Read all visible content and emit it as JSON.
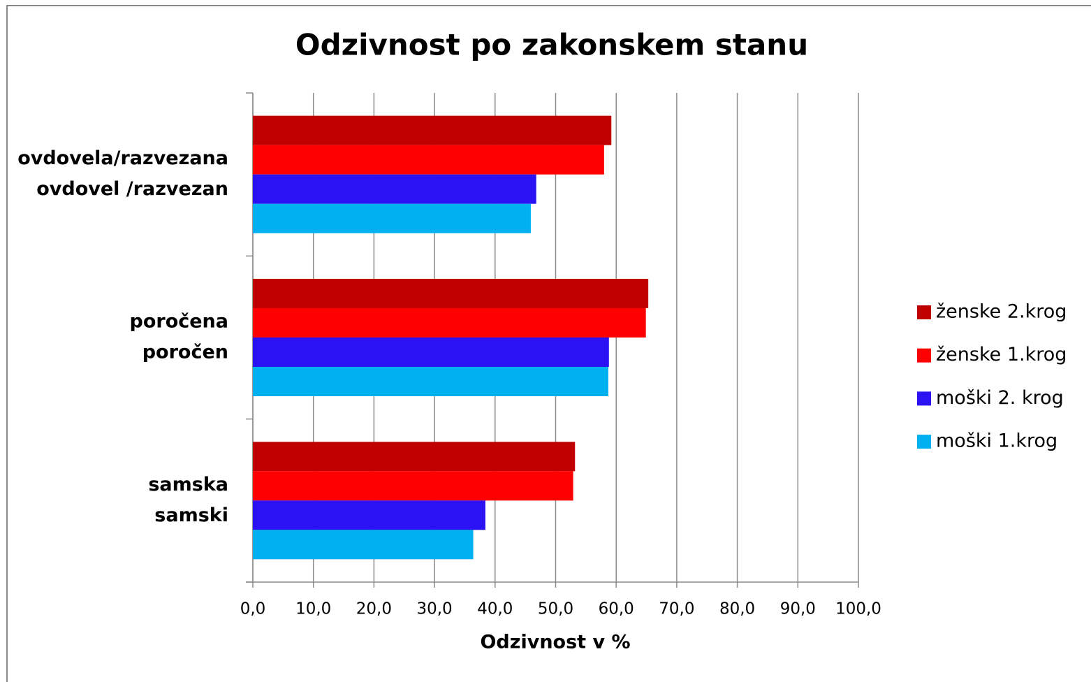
{
  "chart_data": {
    "type": "barh",
    "title": "Odzivnost po zakonskem stanu",
    "xlabel": "Odzivnost v %",
    "categories": [
      [
        "ovdovela/razvezana",
        "ovdovel /razvezan"
      ],
      [
        "poročena",
        "poročen"
      ],
      [
        "samska",
        "samski"
      ]
    ],
    "series": [
      {
        "name": "ženske 2.krog",
        "color": "#c00000",
        "values": [
          59.2,
          65.3,
          53.2
        ]
      },
      {
        "name": "ženske 1.krog",
        "color": "#ff0000",
        "values": [
          58.0,
          64.9,
          52.9
        ]
      },
      {
        "name": "moški 2. krog",
        "color": "#2a12f5",
        "values": [
          46.8,
          58.8,
          38.4
        ]
      },
      {
        "name": "moški 1.krog",
        "color": "#00b0f0",
        "values": [
          45.9,
          58.7,
          36.4
        ]
      }
    ],
    "xlim": [
      0,
      100
    ],
    "xticks": [
      {
        "value": 0,
        "label": "0,0"
      },
      {
        "value": 10,
        "label": "10,0"
      },
      {
        "value": 20,
        "label": "20,0"
      },
      {
        "value": 30,
        "label": "30,0"
      },
      {
        "value": 40,
        "label": "40,0"
      },
      {
        "value": 50,
        "label": "50,0"
      },
      {
        "value": 60,
        "label": "60,0"
      },
      {
        "value": 70,
        "label": "70,0"
      },
      {
        "value": 80,
        "label": "80,0"
      },
      {
        "value": 90,
        "label": "90,0"
      },
      {
        "value": 100,
        "label": "100,0"
      }
    ],
    "grid": true,
    "legend": "right"
  }
}
